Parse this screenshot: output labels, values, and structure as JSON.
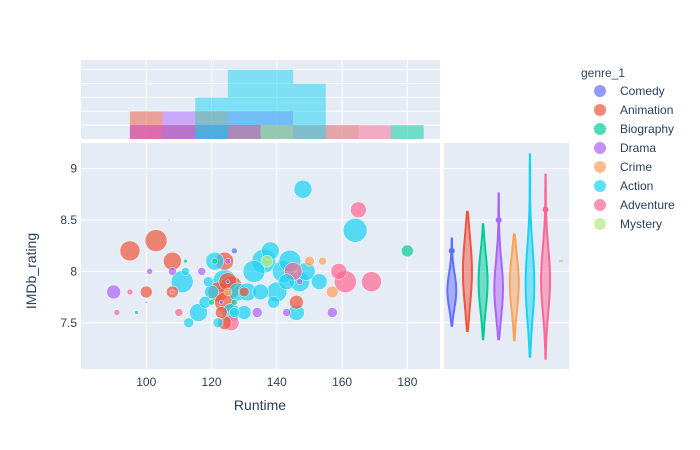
{
  "chart_data": {
    "type": "scatter",
    "title": "",
    "xlabel": "Runtime",
    "ylabel": "IMDb_rating",
    "xlim": [
      80,
      190
    ],
    "ylim": [
      7.05,
      9.25
    ],
    "x_ticks": [
      100,
      120,
      140,
      160,
      180
    ],
    "y_ticks": [
      7.5,
      8,
      8.5,
      9
    ],
    "grid": true,
    "legend": {
      "title": "genre_1",
      "position": "right",
      "entries": [
        "Comedy",
        "Animation",
        "Biography",
        "Drama",
        "Crime",
        "Action",
        "Adventure",
        "Mystery"
      ]
    },
    "marginal_x": "histogram",
    "marginal_y": "violin",
    "series": [
      {
        "name": "Comedy",
        "color": "#636efa",
        "points": [
          [
            107,
            8.5,
            1
          ],
          [
            100,
            7.7,
            1
          ],
          [
            125,
            7.9,
            2
          ],
          [
            123,
            7.7,
            2
          ],
          [
            127,
            8.2,
            3
          ]
        ],
        "hist": [
          [
            95,
            105,
            1
          ],
          [
            105,
            115,
            1
          ],
          [
            115,
            125,
            1
          ],
          [
            125,
            135,
            1
          ]
        ],
        "violin": {
          "min": 7.47,
          "q1": 7.65,
          "median": 7.8,
          "q3": 7.9,
          "max": 8.32,
          "outlier": 8.2
        }
      },
      {
        "name": "Animation",
        "color": "#ef553b",
        "points": [
          [
            95,
            8.2,
            10
          ],
          [
            103,
            8.3,
            11
          ],
          [
            108,
            8.1,
            9
          ],
          [
            100,
            7.8,
            6
          ],
          [
            108,
            7.8,
            6
          ],
          [
            122,
            7.8,
            10
          ],
          [
            124,
            8.1,
            9
          ],
          [
            124,
            7.7,
            10
          ],
          [
            125,
            7.9,
            9
          ],
          [
            126,
            7.85,
            11
          ],
          [
            124,
            7.5,
            7
          ],
          [
            123,
            7.6,
            6
          ],
          [
            130,
            7.8,
            5
          ],
          [
            146,
            7.7,
            7
          ]
        ],
        "hist": [
          [
            95,
            105,
            2
          ],
          [
            105,
            115,
            1
          ],
          [
            115,
            125,
            2
          ],
          [
            125,
            135,
            1
          ],
          [
            135,
            145,
            1
          ]
        ],
        "violin": {
          "min": 7.42,
          "q1": 7.7,
          "median": 8.0,
          "q3": 8.2,
          "max": 8.58
        }
      },
      {
        "name": "Biography",
        "color": "#00cc96",
        "points": [
          [
            180,
            8.2,
            6
          ],
          [
            120,
            7.7,
            3
          ],
          [
            127,
            7.7,
            3
          ],
          [
            112,
            8.1,
            2
          ],
          [
            97,
            7.6,
            2
          ],
          [
            121,
            8.1,
            3
          ]
        ],
        "hist": [
          [
            115,
            125,
            1
          ],
          [
            125,
            135,
            1
          ],
          [
            175,
            185,
            1
          ]
        ],
        "violin": {
          "min": 7.34,
          "q1": 7.7,
          "median": 7.9,
          "q3": 8.1,
          "max": 8.46
        }
      },
      {
        "name": "Drama",
        "color": "#ab63fa",
        "points": [
          [
            90,
            7.8,
            7
          ],
          [
            101,
            8.0,
            3
          ],
          [
            108,
            8.0,
            4
          ],
          [
            117,
            8.0,
            4
          ],
          [
            134,
            7.6,
            5
          ],
          [
            143,
            7.6,
            4
          ],
          [
            157,
            7.6,
            5
          ],
          [
            147,
            7.9,
            3
          ],
          [
            125,
            8.1,
            3
          ]
        ],
        "hist": [
          [
            95,
            105,
            1
          ],
          [
            105,
            115,
            2
          ],
          [
            115,
            125,
            1
          ],
          [
            125,
            135,
            2
          ],
          [
            135,
            145,
            2
          ],
          [
            145,
            155,
            1
          ],
          [
            155,
            165,
            1
          ]
        ],
        "violin": {
          "min": 7.34,
          "q1": 7.6,
          "median": 7.8,
          "q3": 8.0,
          "max": 8.76,
          "outlier": 8.5
        }
      },
      {
        "name": "Crime",
        "color": "#ffa15a",
        "points": [
          [
            150,
            8.1,
            5
          ],
          [
            154,
            8.1,
            4
          ],
          [
            157,
            7.8,
            6
          ],
          [
            125,
            7.8,
            4
          ]
        ],
        "hist": [
          [
            145,
            155,
            1
          ],
          [
            155,
            165,
            1
          ]
        ],
        "violin": {
          "min": 7.33,
          "q1": 7.65,
          "median": 7.9,
          "q3": 8.05,
          "max": 8.36
        }
      },
      {
        "name": "Action",
        "color": "#19d3f3",
        "points": [
          [
            148,
            8.8,
            9
          ],
          [
            164,
            8.4,
            12
          ],
          [
            113,
            7.5,
            5
          ],
          [
            116,
            7.6,
            9
          ],
          [
            118,
            7.7,
            6
          ],
          [
            119,
            7.9,
            5
          ],
          [
            120,
            7.8,
            7
          ],
          [
            121,
            8.1,
            9
          ],
          [
            124,
            7.9,
            12
          ],
          [
            126,
            7.6,
            9
          ],
          [
            128,
            7.8,
            9
          ],
          [
            130,
            7.6,
            7
          ],
          [
            131,
            7.8,
            9
          ],
          [
            133,
            8.0,
            11
          ],
          [
            135,
            7.8,
            8
          ],
          [
            136,
            8.1,
            12
          ],
          [
            138,
            8.2,
            9
          ],
          [
            140,
            7.8,
            10
          ],
          [
            142,
            8.0,
            11
          ],
          [
            143,
            7.9,
            8
          ],
          [
            144,
            8.1,
            11
          ],
          [
            146,
            7.6,
            8
          ],
          [
            147,
            7.9,
            10
          ],
          [
            149,
            8.0,
            9
          ],
          [
            153,
            7.9,
            8
          ],
          [
            111,
            7.9,
            11
          ],
          [
            122,
            7.5,
            5
          ],
          [
            112,
            8.0,
            4
          ],
          [
            127,
            7.6,
            5
          ],
          [
            139,
            7.7,
            6
          ]
        ],
        "hist": [
          [
            115,
            125,
            3
          ],
          [
            125,
            135,
            5
          ],
          [
            135,
            145,
            5
          ],
          [
            145,
            155,
            4
          ]
        ],
        "violin": {
          "min": 7.17,
          "q1": 7.6,
          "median": 7.85,
          "q3": 8.1,
          "max": 9.14
        }
      },
      {
        "name": "Adventure",
        "color": "#ff6692",
        "points": [
          [
            165,
            8.6,
            8
          ],
          [
            161,
            7.9,
            11
          ],
          [
            169,
            7.9,
            10
          ],
          [
            159,
            8.0,
            8
          ],
          [
            145,
            8.0,
            9
          ],
          [
            126,
            7.5,
            8
          ],
          [
            91,
            7.6,
            3
          ],
          [
            95,
            7.8,
            3
          ],
          [
            108,
            7.8,
            2
          ],
          [
            110,
            7.6,
            4
          ]
        ],
        "hist": [
          [
            95,
            105,
            1
          ],
          [
            125,
            135,
            1
          ],
          [
            165,
            175,
            1
          ]
        ],
        "violin": {
          "min": 7.15,
          "q1": 7.65,
          "median": 7.9,
          "q3": 8.1,
          "max": 8.94,
          "outlier": 8.6
        }
      },
      {
        "name": "Mystery",
        "color": "#b6e880",
        "points": [
          [
            137,
            8.1,
            6
          ]
        ],
        "hist": [
          [
            135,
            145,
            1
          ]
        ],
        "violin": {
          "min": 8.09,
          "q1": 8.1,
          "median": 8.1,
          "q3": 8.1,
          "max": 8.11
        }
      }
    ]
  }
}
